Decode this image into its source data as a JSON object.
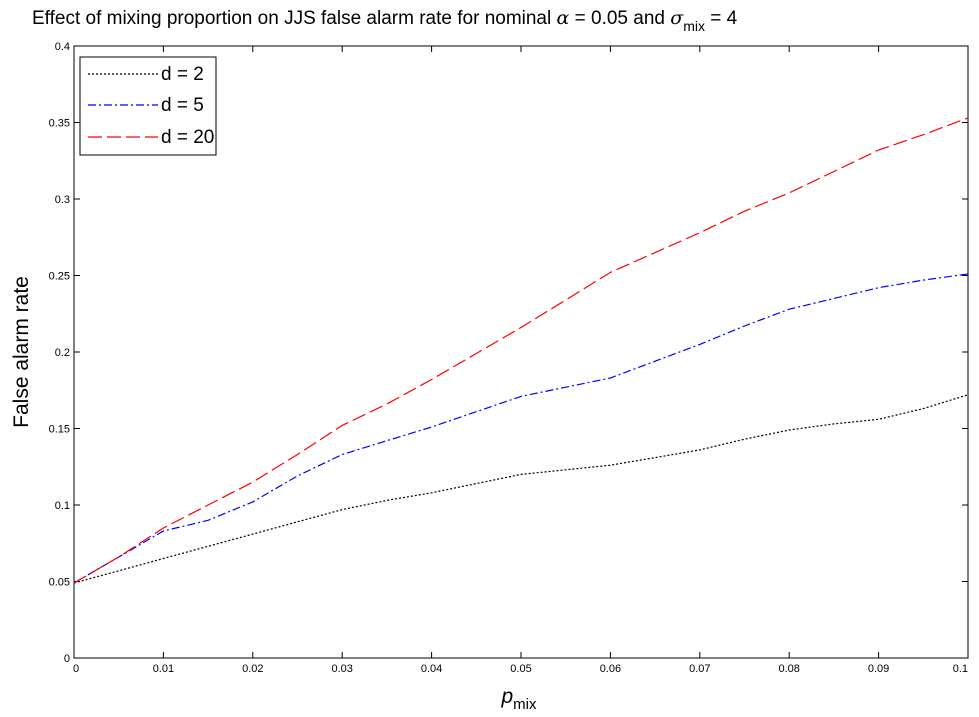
{
  "chart_data": {
    "type": "line",
    "title": {
      "prefix": "Effect of mixing proportion on JJS false alarm rate for nominal ",
      "alpha_symbol": "α",
      "alpha_rest": " = 0.05 and ",
      "sigma_symbol": "σ",
      "sigma_subscript": "mix",
      "sigma_rest": " = 4"
    },
    "xlabel": {
      "main": "p",
      "subscript": "mix"
    },
    "ylabel": "False alarm rate",
    "xlim": [
      0,
      0.1
    ],
    "ylim": [
      0,
      0.4
    ],
    "xticks": [
      0,
      0.01,
      0.02,
      0.03,
      0.04,
      0.05,
      0.06,
      0.07,
      0.08,
      0.09,
      0.1
    ],
    "xtick_labels": [
      "0",
      "0.01",
      "0.02",
      "0.03",
      "0.04",
      "0.05",
      "0.06",
      "0.07",
      "0.08",
      "0.09",
      "0.1"
    ],
    "yticks": [
      0,
      0.05,
      0.1,
      0.15,
      0.2,
      0.25,
      0.3,
      0.35,
      0.4
    ],
    "ytick_labels": [
      "0",
      "0.05",
      "0.1",
      "0.15",
      "0.2",
      "0.25",
      "0.3",
      "0.35",
      "0.4"
    ],
    "grid": false,
    "legend_position": "top-left",
    "x": [
      0,
      0.005,
      0.01,
      0.015,
      0.02,
      0.025,
      0.03,
      0.035,
      0.04,
      0.045,
      0.05,
      0.055,
      0.06,
      0.065,
      0.07,
      0.075,
      0.08,
      0.085,
      0.09,
      0.095,
      0.1
    ],
    "series": [
      {
        "name": "d = 2",
        "color": "#000000",
        "style": "dotted",
        "values": [
          0.049,
          0.057,
          0.065,
          0.073,
          0.081,
          0.089,
          0.097,
          0.103,
          0.108,
          0.114,
          0.12,
          0.123,
          0.126,
          0.131,
          0.136,
          0.143,
          0.149,
          0.153,
          0.156,
          0.163,
          0.172
        ]
      },
      {
        "name": "d = 5",
        "color": "#0000ff",
        "style": "dashdot",
        "values": [
          0.049,
          0.066,
          0.083,
          0.09,
          0.102,
          0.119,
          0.133,
          0.142,
          0.151,
          0.161,
          0.171,
          0.177,
          0.183,
          0.194,
          0.205,
          0.217,
          0.228,
          0.235,
          0.242,
          0.247,
          0.251
        ]
      },
      {
        "name": "d = 20",
        "color": "#ff0000",
        "style": "dashed",
        "values": [
          0.049,
          0.066,
          0.085,
          0.1,
          0.115,
          0.133,
          0.152,
          0.166,
          0.182,
          0.199,
          0.216,
          0.234,
          0.252,
          0.265,
          0.278,
          0.292,
          0.304,
          0.318,
          0.332,
          0.342,
          0.353
        ]
      }
    ]
  }
}
